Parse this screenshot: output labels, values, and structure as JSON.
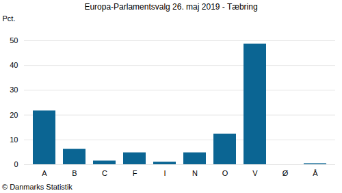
{
  "chart_data": {
    "type": "bar",
    "title": "Europa-Parlamentsvalg 26. maj 2019 - Tæbring",
    "y_label": "Pct.",
    "caption": "© Danmarks Statistik",
    "categories": [
      "A",
      "B",
      "C",
      "F",
      "I",
      "N",
      "O",
      "V",
      "Ø",
      "Å"
    ],
    "values": [
      21.7,
      6.2,
      1.5,
      4.8,
      1.0,
      4.8,
      12.3,
      48.7,
      0,
      0.4
    ],
    "color": "#0b6593",
    "ylim": [
      0,
      50
    ],
    "yticks": [
      0,
      10,
      20,
      30,
      40,
      50
    ],
    "grid": true
  }
}
